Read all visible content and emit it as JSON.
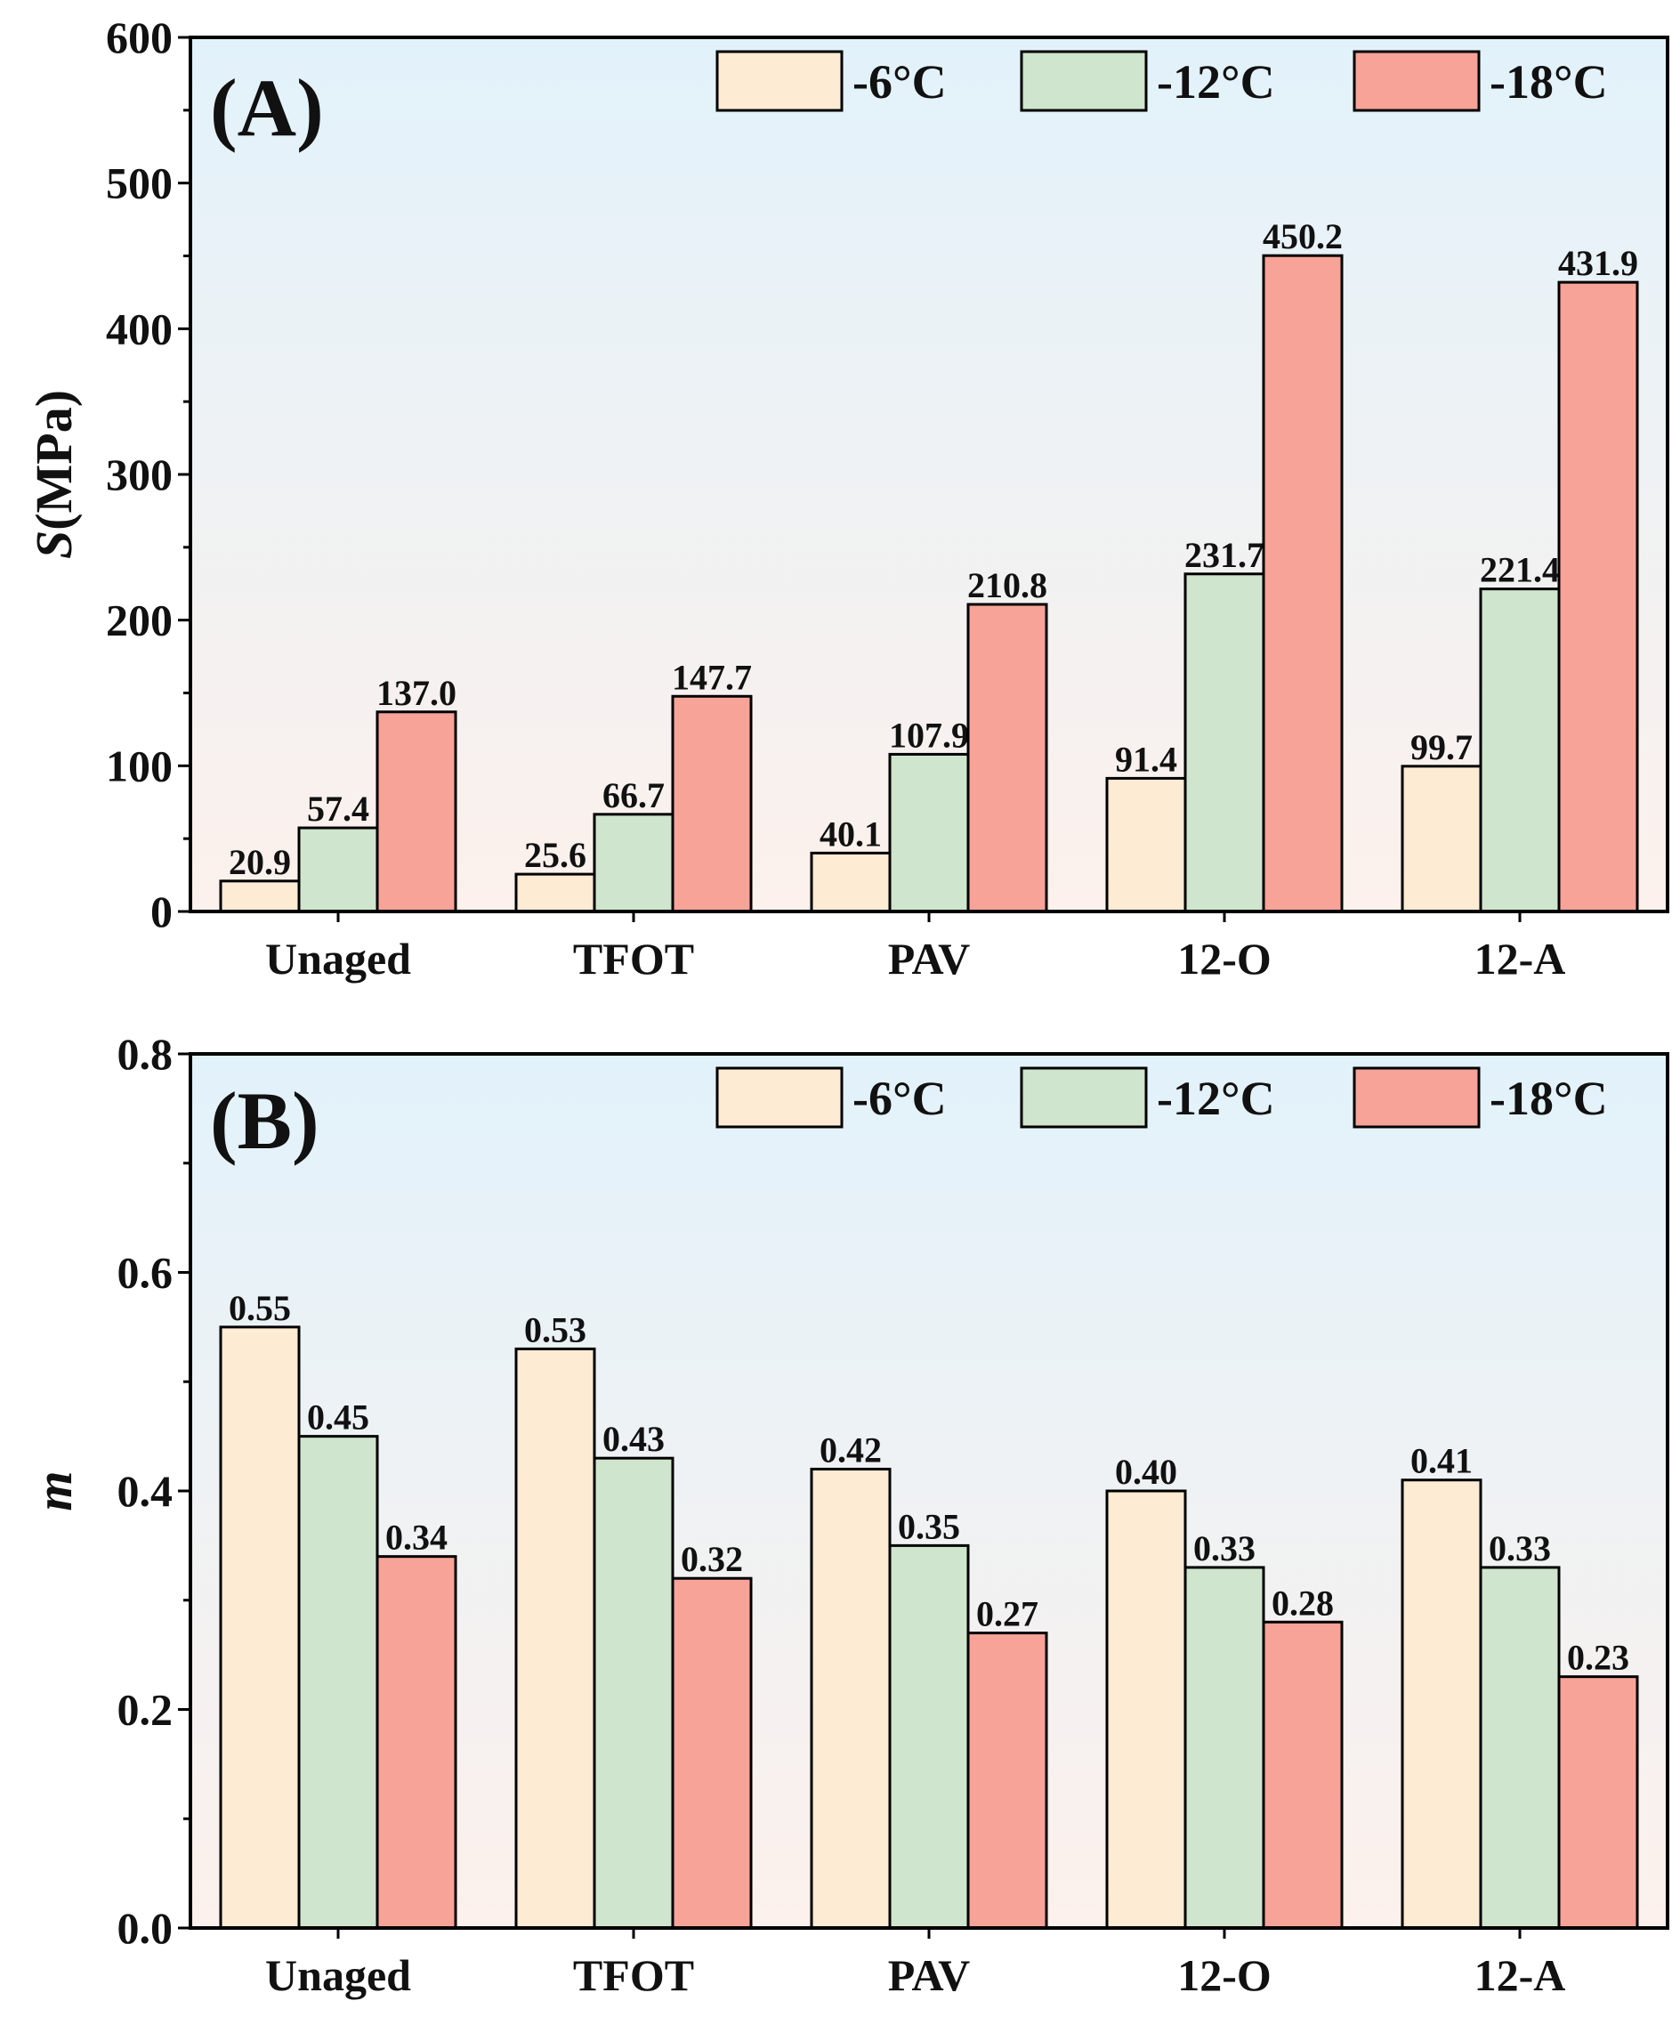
{
  "colors": {
    "series": [
      "#fdebd3",
      "#cfe5cd",
      "#f8a398"
    ],
    "panel_tag": "#e8171a",
    "gradient_top": "#e2f2fb",
    "gradient_bottom": "#fcf1ec"
  },
  "chart_data": [
    {
      "type": "bar",
      "panel_tag": "(A)",
      "categories": [
        "Unaged",
        "TFOT",
        "PAV",
        "12-O",
        "12-A"
      ],
      "series": [
        {
          "name": "-6°C",
          "values": [
            20.9,
            25.6,
            40.1,
            91.4,
            99.7
          ]
        },
        {
          "name": "-12°C",
          "values": [
            57.4,
            66.7,
            107.9,
            231.7,
            221.4
          ]
        },
        {
          "name": "-18°C",
          "values": [
            137.0,
            147.7,
            210.8,
            450.2,
            431.9
          ]
        }
      ],
      "value_labels": [
        [
          "20.9",
          "25.6",
          "40.1",
          "91.4",
          "99.7"
        ],
        [
          "57.4",
          "66.7",
          "107.9",
          "231.7",
          "221.4"
        ],
        [
          "137.0",
          "147.7",
          "210.8",
          "450.2",
          "431.9"
        ]
      ],
      "ylabel_italic": "S",
      "ylabel_rest": "(MPa)",
      "xlabel": "",
      "ylim": [
        0,
        600
      ],
      "yticks": [
        "0",
        "100",
        "200",
        "300",
        "400",
        "500",
        "600"
      ],
      "legend_position": "top-right"
    },
    {
      "type": "bar",
      "panel_tag": "(B)",
      "categories": [
        "Unaged",
        "TFOT",
        "PAV",
        "12-O",
        "12-A"
      ],
      "series": [
        {
          "name": "-6°C",
          "values": [
            0.55,
            0.53,
            0.42,
            0.4,
            0.41
          ]
        },
        {
          "name": "-12°C",
          "values": [
            0.45,
            0.43,
            0.35,
            0.33,
            0.33
          ]
        },
        {
          "name": "-18°C",
          "values": [
            0.34,
            0.32,
            0.27,
            0.28,
            0.23
          ]
        }
      ],
      "value_labels": [
        [
          "0.55",
          "0.53",
          "0.42",
          "0.40",
          "0.41"
        ],
        [
          "0.45",
          "0.43",
          "0.35",
          "0.33",
          "0.33"
        ],
        [
          "0.34",
          "0.32",
          "0.27",
          "0.28",
          "0.23"
        ]
      ],
      "ylabel_italic": "m",
      "ylabel_rest": "",
      "xlabel": "",
      "ylim": [
        0,
        0.8
      ],
      "yticks": [
        "0.0",
        "0.2",
        "0.4",
        "0.6",
        "0.8"
      ],
      "legend_position": "top-right"
    }
  ]
}
